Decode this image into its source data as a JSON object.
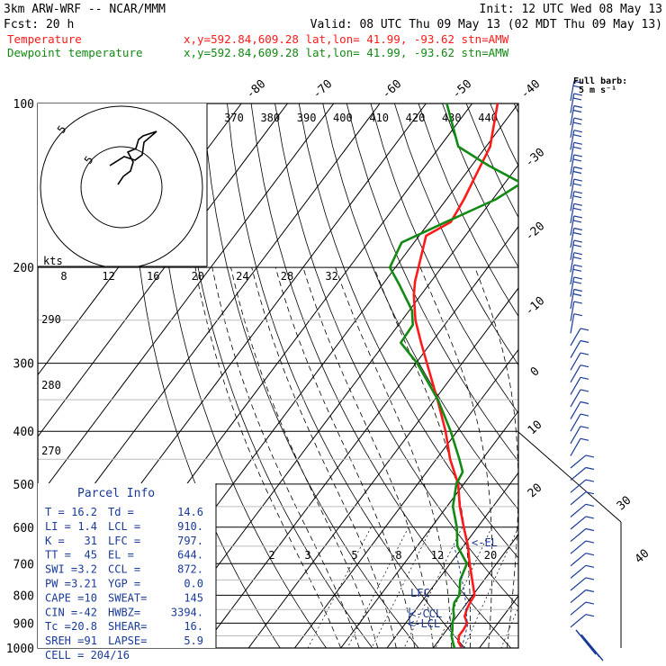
{
  "header": {
    "model": "3km ARW-WRF -- NCAR/MMM",
    "init": "Init: 12 UTC Wed 08 May 13",
    "fcst": "Fcst:   20 h",
    "valid": "Valid: 08 UTC Thu 09 May 13 (02 MDT Thu 09 May 13)",
    "temp_name": "Temperature",
    "dew_name": "Dewpoint temperature",
    "loc": "x,y=592.84,609.28   lat,lon= 41.99, -93.62  stn=AMW"
  },
  "colors": {
    "temperature": "#ff1a1a",
    "dewpoint": "#138a13",
    "parcel": "#1c1c8a",
    "text_blue": "#1a3a9a"
  },
  "barb_header": {
    "title": "Full barb:",
    "unit": "5 m s⁻¹"
  },
  "hodograph": {
    "unit": "kts",
    "ring_labels": [
      "5",
      "5"
    ]
  },
  "chart_data": {
    "type": "skew-T log-P sounding",
    "pressure_levels_hPa": [
      100,
      200,
      300,
      400,
      500,
      600,
      700,
      800,
      900,
      1000
    ],
    "isotherm_labels_C": [
      "-80",
      "-70",
      "-60",
      "-50",
      "-40",
      "-30",
      "-20",
      "-10",
      "0",
      "10",
      "20",
      "30",
      "40"
    ],
    "theta_labels_K": [
      "370",
      "380",
      "390",
      "400",
      "410",
      "420",
      "430",
      "440"
    ],
    "theta_left_labels_K": [
      "290",
      "280",
      "270"
    ],
    "wind_axis_kts": [
      "8",
      "12",
      "16",
      "20",
      "24",
      "28",
      "32"
    ],
    "mixing_ratio_labels": [
      "2",
      "3",
      "5",
      "8",
      "12",
      "20"
    ],
    "markers": {
      "el": "<-EL",
      "lfc": "LFC",
      "ccl": "<-CCL",
      "lcl": "<-LCL"
    },
    "series": [
      {
        "name": "Temperature",
        "points": [
          [
            1000,
            16.2
          ],
          [
            975,
            14.5
          ],
          [
            950,
            13.6
          ],
          [
            925,
            13.6
          ],
          [
            900,
            13.3
          ],
          [
            875,
            11.7
          ],
          [
            850,
            11.0
          ],
          [
            825,
            10.6
          ],
          [
            800,
            10.4
          ],
          [
            750,
            7.4
          ],
          [
            700,
            4.2
          ],
          [
            650,
            1.0
          ],
          [
            600,
            -3.0
          ],
          [
            550,
            -7.2
          ],
          [
            500,
            -11.2
          ],
          [
            450,
            -17.0
          ],
          [
            400,
            -22.5
          ],
          [
            350,
            -29.4
          ],
          [
            300,
            -37.6
          ],
          [
            275,
            -42.2
          ],
          [
            250,
            -47.1
          ],
          [
            225,
            -51.5
          ],
          [
            212,
            -53.5
          ],
          [
            200,
            -55.0
          ],
          [
            175,
            -58.5
          ],
          [
            165,
            -55.4
          ],
          [
            150,
            -56.2
          ],
          [
            135,
            -57.6
          ],
          [
            120,
            -59.1
          ],
          [
            100,
            -64.5
          ]
        ]
      },
      {
        "name": "Dewpoint temperature",
        "points": [
          [
            1000,
            14.6
          ],
          [
            975,
            13.3
          ],
          [
            950,
            12.0
          ],
          [
            925,
            11.2
          ],
          [
            900,
            10.1
          ],
          [
            875,
            9.4
          ],
          [
            850,
            8.1
          ],
          [
            825,
            7.2
          ],
          [
            800,
            7.1
          ],
          [
            750,
            4.8
          ],
          [
            700,
            3.6
          ],
          [
            650,
            -1.3
          ],
          [
            600,
            -4.5
          ],
          [
            550,
            -8.7
          ],
          [
            500,
            -11.6
          ],
          [
            475,
            -12.2
          ],
          [
            450,
            -15.0
          ],
          [
            400,
            -21.4
          ],
          [
            350,
            -29.3
          ],
          [
            300,
            -39.7
          ],
          [
            275,
            -46.6
          ],
          [
            255,
            -46.9
          ],
          [
            240,
            -49.4
          ],
          [
            215,
            -56.4
          ],
          [
            200,
            -61.2
          ],
          [
            180,
            -62.7
          ],
          [
            165,
            -56.4
          ],
          [
            150,
            -49.3
          ],
          [
            140,
            -46.4
          ],
          [
            130,
            -56.4
          ],
          [
            120,
            -66.0
          ],
          [
            100,
            -75.5
          ]
        ]
      }
    ]
  },
  "parcel_info": {
    "title": "Parcel Info",
    "rows": [
      [
        "T  =",
        "16.2",
        "Td =",
        "14.6"
      ],
      [
        "LI =",
        "1.4",
        "LCL =",
        "910."
      ],
      [
        "K  =",
        "31",
        "LFC =",
        "797."
      ],
      [
        "TT =",
        "45",
        "EL  =",
        "644."
      ],
      [
        "SWI =",
        "3.2",
        "CCL =",
        "872."
      ],
      [
        "PW =",
        "3.21",
        "YGP =",
        "0.0"
      ],
      [
        "CAPE =",
        "10",
        "SWEAT=",
        "145"
      ],
      [
        "CIN =",
        "-42",
        "HWBZ=",
        "3394."
      ],
      [
        "Tc =",
        "20.8",
        "SHEAR=",
        "16."
      ],
      [
        "SREH =",
        "91",
        "LAPSE=",
        "5.9"
      ]
    ],
    "cell": "CELL = 204/16"
  }
}
